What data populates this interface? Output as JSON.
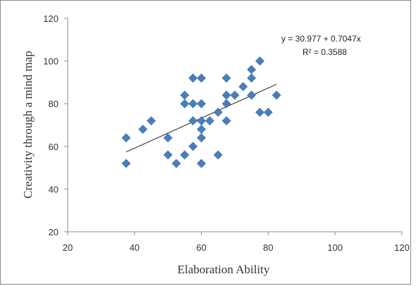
{
  "chart_data": {
    "type": "scatter",
    "title": "",
    "xlabel": "Elaboration Ability",
    "ylabel": "Creativity through a mind map",
    "xlim": [
      20,
      120
    ],
    "ylim": [
      20,
      120
    ],
    "xticks": [
      20,
      40,
      60,
      80,
      100,
      120
    ],
    "yticks": [
      20,
      40,
      60,
      80,
      100,
      120
    ],
    "grid": false,
    "legend": "none",
    "point_color": "#4a7ebb",
    "points": [
      {
        "x": 37.5,
        "y": 64
      },
      {
        "x": 37.5,
        "y": 52
      },
      {
        "x": 42.5,
        "y": 68
      },
      {
        "x": 45,
        "y": 72
      },
      {
        "x": 50,
        "y": 64
      },
      {
        "x": 50,
        "y": 56
      },
      {
        "x": 52.5,
        "y": 52
      },
      {
        "x": 55,
        "y": 84
      },
      {
        "x": 55,
        "y": 80
      },
      {
        "x": 55,
        "y": 56
      },
      {
        "x": 57.5,
        "y": 92
      },
      {
        "x": 57.5,
        "y": 80
      },
      {
        "x": 57.5,
        "y": 72
      },
      {
        "x": 57.5,
        "y": 60
      },
      {
        "x": 60,
        "y": 92
      },
      {
        "x": 60,
        "y": 80
      },
      {
        "x": 60,
        "y": 72
      },
      {
        "x": 60,
        "y": 68
      },
      {
        "x": 60,
        "y": 64
      },
      {
        "x": 60,
        "y": 52
      },
      {
        "x": 62.5,
        "y": 72
      },
      {
        "x": 65,
        "y": 76
      },
      {
        "x": 65,
        "y": 56
      },
      {
        "x": 67.5,
        "y": 92
      },
      {
        "x": 67.5,
        "y": 84
      },
      {
        "x": 67.5,
        "y": 80
      },
      {
        "x": 67.5,
        "y": 72
      },
      {
        "x": 70,
        "y": 84
      },
      {
        "x": 72.5,
        "y": 88
      },
      {
        "x": 75,
        "y": 96
      },
      {
        "x": 75,
        "y": 92
      },
      {
        "x": 75,
        "y": 84
      },
      {
        "x": 77.5,
        "y": 100
      },
      {
        "x": 77.5,
        "y": 76
      },
      {
        "x": 80,
        "y": 76
      },
      {
        "x": 82.5,
        "y": 84
      }
    ],
    "trendline": {
      "type": "linear",
      "intercept": 30.977,
      "slope": 0.7047,
      "x_range": [
        37.5,
        82.5
      ]
    },
    "annotations": {
      "equation": "y = 30.977 + 0.7047x",
      "r_squared": "R² = 0.3588"
    }
  }
}
